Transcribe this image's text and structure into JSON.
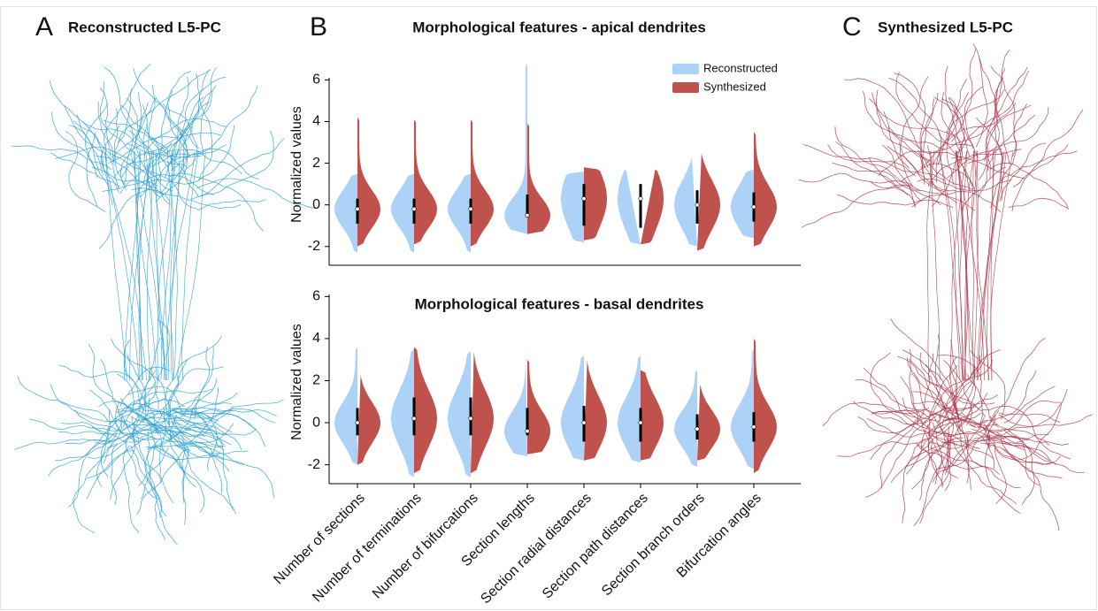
{
  "panels": [
    {
      "letter": "A",
      "title": "Reconstructed L5-PC"
    },
    {
      "letter": "B"
    },
    {
      "letter": "C",
      "title": "Synthesized L5-PC"
    }
  ],
  "chart_data": [
    {
      "type": "violin",
      "title": "Morphological features - apical dendrites",
      "y_label": "Normalized values",
      "ylim": [
        -2.9,
        6.1
      ],
      "yticks": [
        -2,
        0,
        2,
        4,
        6
      ],
      "legend": "upper right",
      "series": [
        {
          "name": "Reconstructed",
          "color": "#acd3f7",
          "min": [
            -2.3,
            -2.3,
            -2.3,
            -1.4,
            -1.8,
            -1.9,
            -2.0,
            -1.6
          ],
          "max": [
            1.5,
            1.5,
            1.5,
            6.8,
            1.6,
            1.8,
            2.4,
            1.7
          ]
        },
        {
          "name": "Synthesized",
          "color": "#c0524d",
          "min": [
            -2.0,
            -1.9,
            -2.0,
            -1.4,
            -1.7,
            -1.9,
            -2.2,
            -2.0
          ],
          "max": [
            4.2,
            4.1,
            4.1,
            3.9,
            1.8,
            1.8,
            2.6,
            3.5
          ]
        }
      ],
      "box": {
        "q1": [
          -0.9,
          -0.9,
          -0.9,
          -0.6,
          -1.0,
          -1.1,
          -0.9,
          -0.8
        ],
        "median": [
          -0.2,
          -0.2,
          -0.2,
          -0.5,
          0.3,
          0.3,
          0,
          -0.1
        ],
        "q3": [
          0.3,
          0.3,
          0.3,
          0.5,
          1.0,
          1.0,
          0.7,
          0.6
        ]
      }
    },
    {
      "type": "violin",
      "title": "Morphological features - basal dendrites",
      "y_label": "Normalized values",
      "ylim": [
        -2.9,
        6.1
      ],
      "yticks": [
        -2,
        0,
        2,
        4,
        6
      ],
      "categories": [
        "Number of sections",
        "Number of terminations",
        "Number of bifurcations",
        "Section lengths",
        "Section radial distances",
        "Section path distances",
        "Section branch orders",
        "Bifurcation angles"
      ],
      "series": [
        {
          "color": "#acd3f7",
          "min": [
            -2.0,
            -2.6,
            -2.6,
            -1.6,
            -1.8,
            -1.9,
            -2.1,
            -2.2
          ],
          "max": [
            3.6,
            3.5,
            3.4,
            3.8,
            3.2,
            3.2,
            2.5,
            3.5
          ]
        },
        {
          "color": "#c0524d",
          "min": [
            -2.0,
            -2.4,
            -2.4,
            -1.5,
            -1.8,
            -1.8,
            -1.8,
            -2.4
          ],
          "max": [
            2.4,
            3.6,
            3.5,
            3.0,
            3.1,
            2.5,
            1.9,
            4.0
          ]
        }
      ],
      "box": {
        "q1": [
          -0.6,
          -0.6,
          -0.6,
          -0.6,
          -0.9,
          -0.9,
          -0.8,
          -0.9
        ],
        "median": [
          0,
          0.2,
          0.2,
          -0.4,
          0,
          0,
          -0.3,
          -0.2
        ],
        "q3": [
          0.7,
          1.2,
          1.2,
          0.7,
          0.8,
          0.7,
          0.4,
          0.5
        ]
      }
    }
  ]
}
